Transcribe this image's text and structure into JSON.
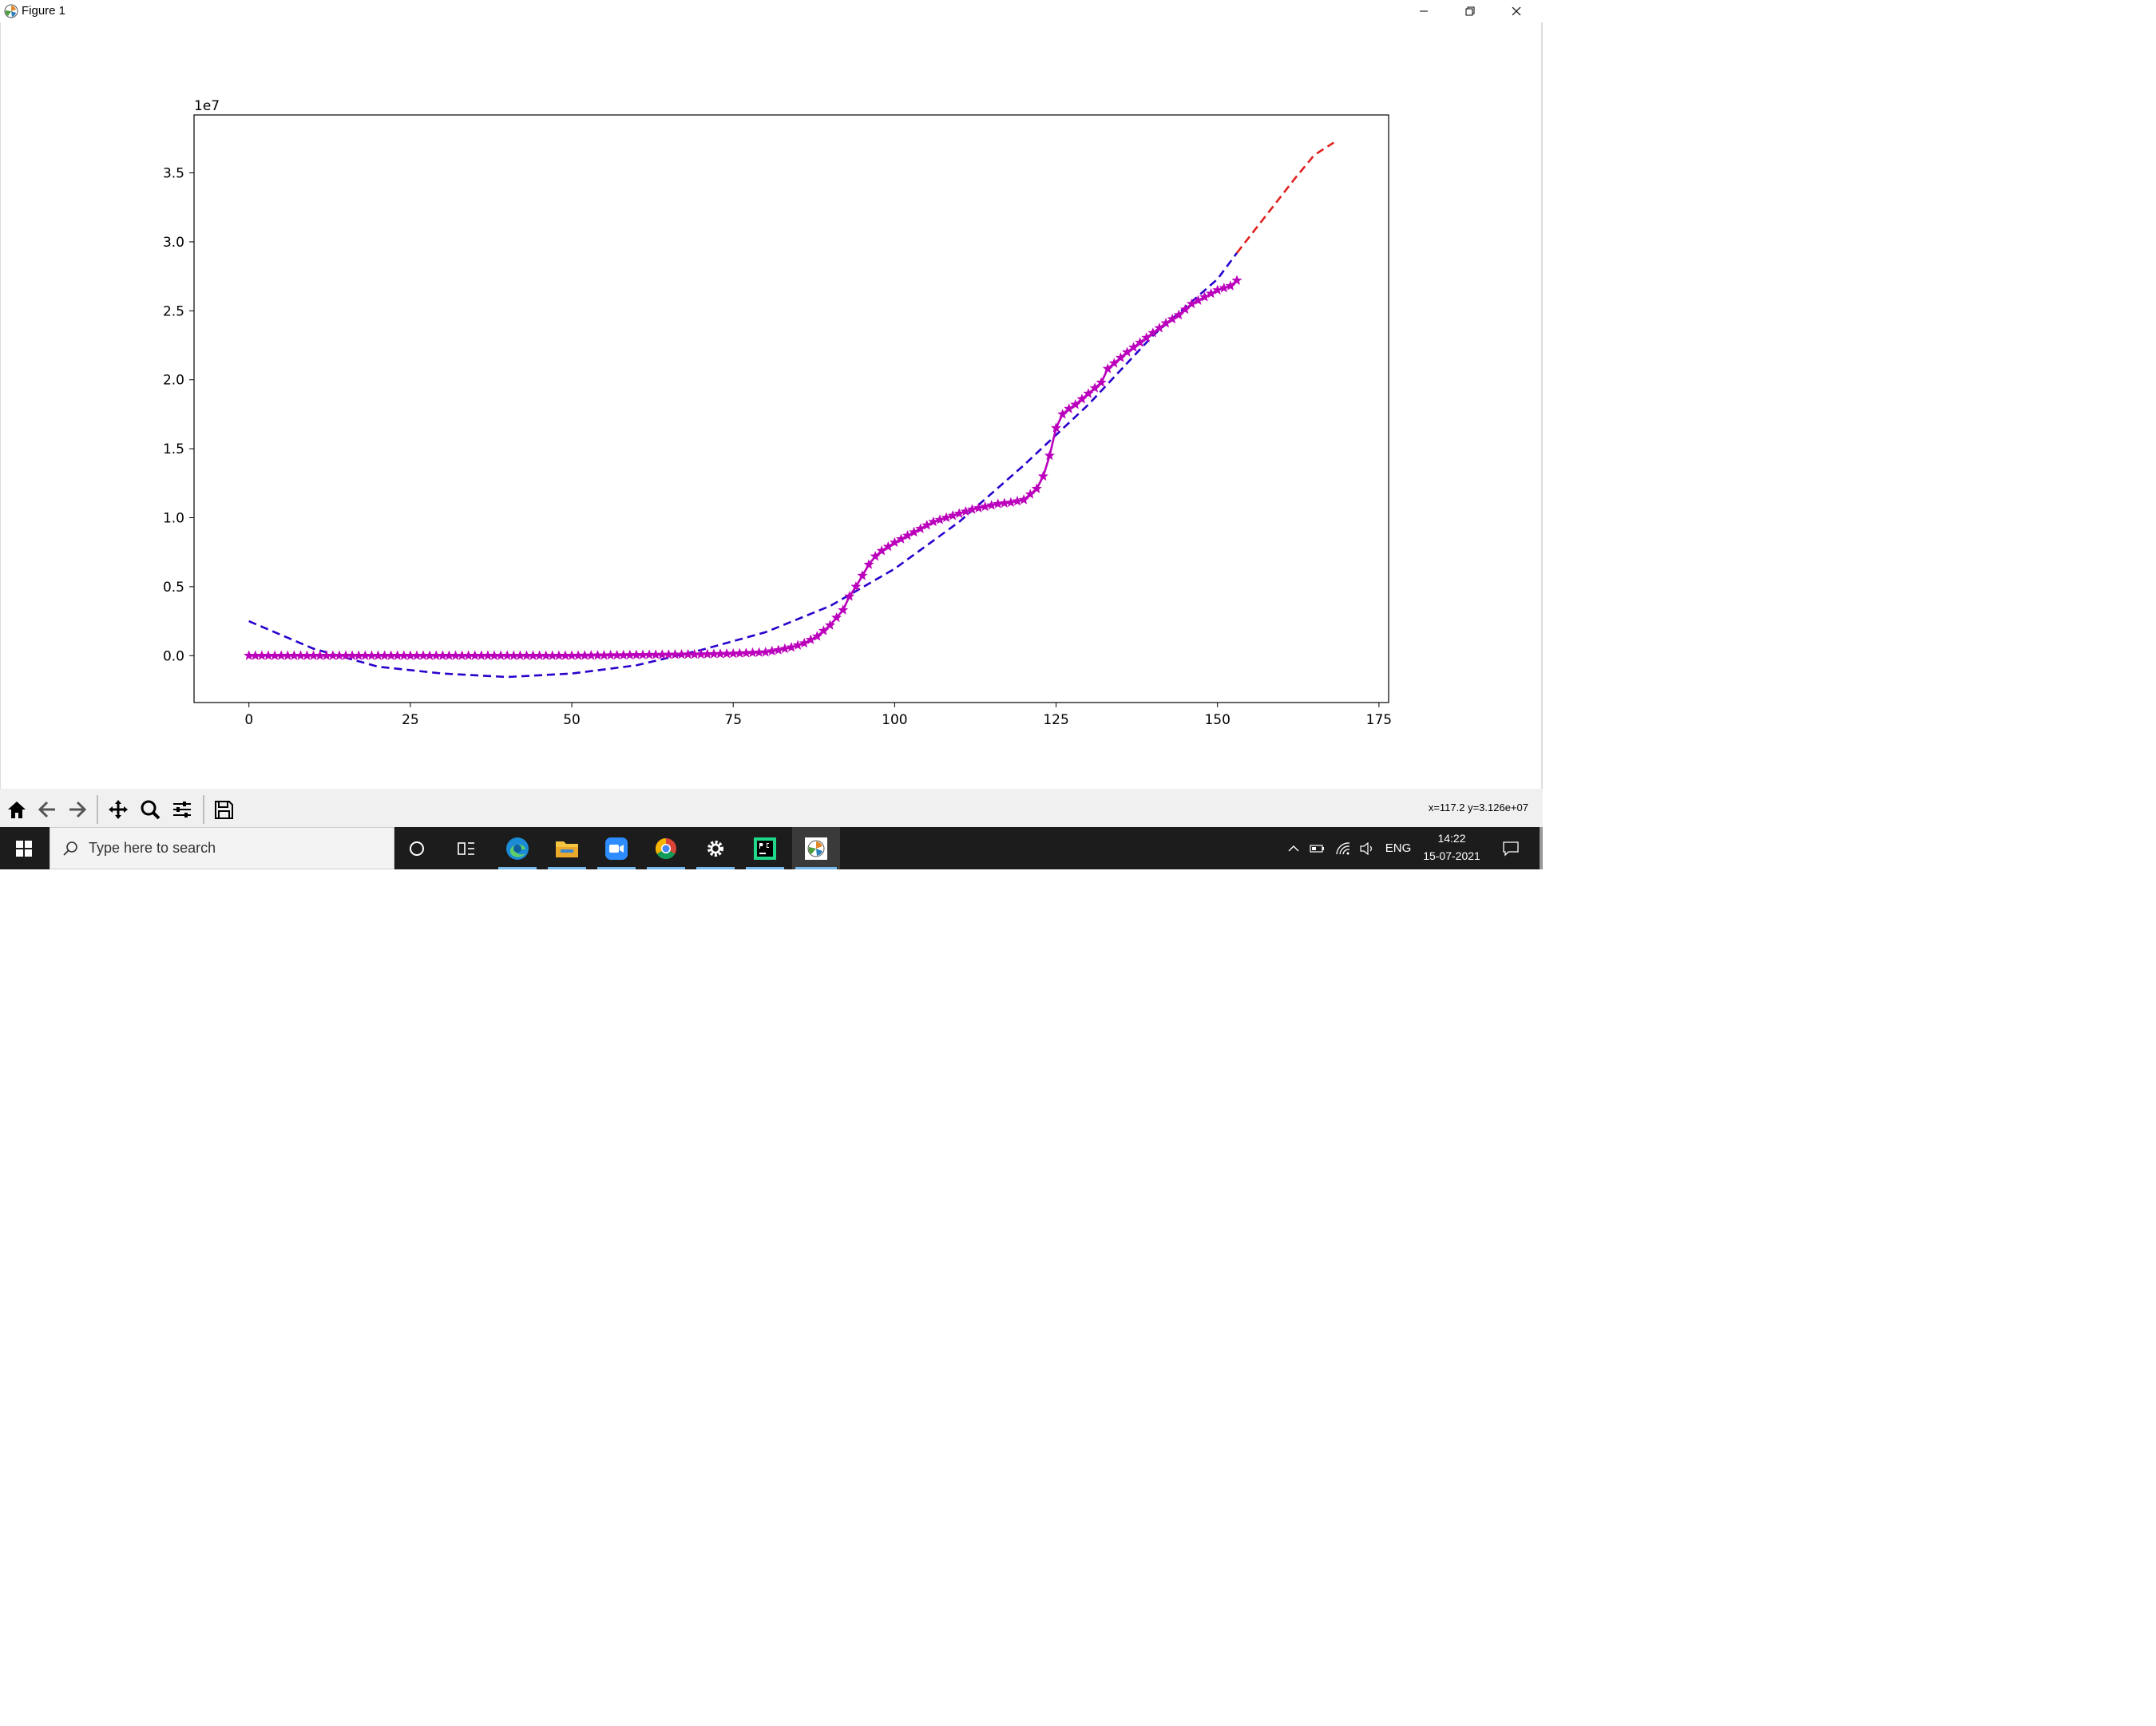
{
  "window": {
    "title": "Figure 1",
    "icons": {
      "app": "matplotlib-icon",
      "minimize": "minimize-icon",
      "restore": "restore-icon",
      "close": "close-icon"
    }
  },
  "toolbar": {
    "buttons": [
      "home-icon",
      "back-arrow-icon",
      "forward-arrow-icon",
      "pan-icon",
      "zoom-icon",
      "configure-subplots-icon",
      "save-icon"
    ],
    "coord_readout": "x=117.2 y=3.126e+07"
  },
  "taskbar": {
    "search_placeholder": "Type here to search",
    "apps": [
      "cortana-icon",
      "task-view-icon",
      "edge-icon",
      "file-explorer-icon",
      "zoom-app-icon",
      "chrome-icon",
      "settings-icon",
      "pycharm-icon",
      "matplotlib-app-icon"
    ],
    "tray": {
      "language": "ENG",
      "time": "14:22",
      "date": "15-07-2021"
    }
  },
  "chart_data": {
    "type": "line",
    "title": "",
    "xlabel": "",
    "ylabel": "",
    "offset_label": "1e7",
    "xlim": [
      -8.5,
      176.5
    ],
    "ylim": [
      -0.34,
      3.92
    ],
    "xticks": [
      0,
      25,
      50,
      75,
      100,
      125,
      150,
      175
    ],
    "xtick_labels": [
      "0",
      "25",
      "50",
      "75",
      "100",
      "125",
      "150",
      "175"
    ],
    "yticks": [
      0.0,
      0.5,
      1.0,
      1.5,
      2.0,
      2.5,
      3.0,
      3.5
    ],
    "ytick_labels": [
      "0.0",
      "0.5",
      "1.0",
      "1.5",
      "2.0",
      "2.5",
      "3.0",
      "3.5"
    ],
    "grid": false,
    "series": [
      {
        "name": "",
        "style": "dashed",
        "color": "#2a00cc",
        "x": [
          0,
          10,
          20,
          30,
          40,
          50,
          60,
          70,
          80,
          90,
          100,
          110,
          120,
          130,
          140,
          150,
          153
        ],
        "y": [
          0.25,
          0.05,
          -0.08,
          -0.13,
          -0.155,
          -0.13,
          -0.07,
          0.04,
          0.17,
          0.36,
          0.63,
          0.97,
          1.38,
          1.82,
          2.32,
          2.73,
          2.92
        ]
      },
      {
        "name": "",
        "style": "dashed",
        "color": "#e02020",
        "x": [
          153,
          156,
          159,
          162,
          165,
          168
        ],
        "y": [
          2.92,
          3.1,
          3.28,
          3.46,
          3.63,
          3.72
        ]
      },
      {
        "name": "",
        "style": "solid-star-markers",
        "color": "#bb00bb",
        "x": [
          0,
          10,
          20,
          30,
          40,
          50,
          60,
          70,
          75,
          80,
          82,
          84,
          86,
          88,
          90,
          92,
          93,
          94,
          95,
          96,
          97,
          98,
          100,
          102,
          104,
          106,
          108,
          110,
          112,
          114,
          116,
          118,
          120,
          121,
          122,
          123,
          124,
          125,
          126,
          127,
          128,
          130,
          132,
          133,
          134,
          136,
          138,
          140,
          142,
          144,
          146,
          148,
          150,
          152,
          153
        ],
        "y": [
          0.0,
          0.0,
          0.0,
          0.0,
          0.0,
          0.0,
          0.005,
          0.01,
          0.015,
          0.025,
          0.04,
          0.06,
          0.09,
          0.14,
          0.22,
          0.33,
          0.43,
          0.5,
          0.58,
          0.66,
          0.72,
          0.76,
          0.82,
          0.87,
          0.92,
          0.97,
          1.0,
          1.03,
          1.06,
          1.08,
          1.1,
          1.11,
          1.13,
          1.17,
          1.21,
          1.3,
          1.45,
          1.65,
          1.75,
          1.79,
          1.82,
          1.9,
          1.98,
          2.08,
          2.12,
          2.2,
          2.27,
          2.34,
          2.41,
          2.47,
          2.55,
          2.6,
          2.65,
          2.68,
          2.72
        ]
      }
    ]
  }
}
